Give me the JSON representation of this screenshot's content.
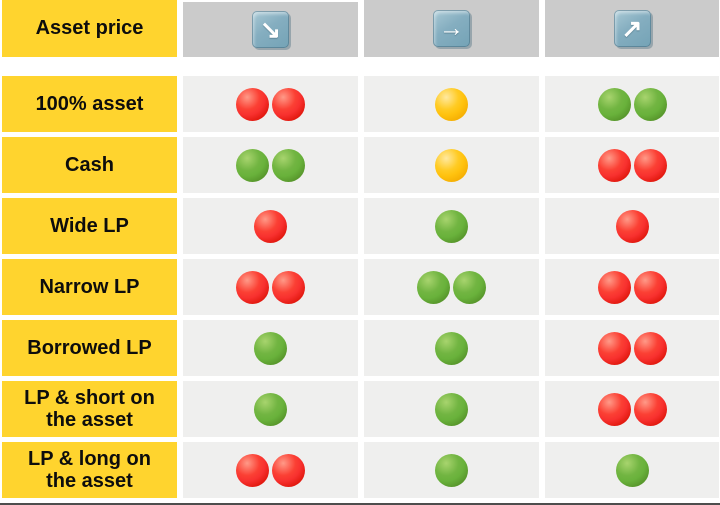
{
  "chart_data": {
    "type": "table",
    "title": "Asset price",
    "columns": [
      {
        "icon": "down-right-arrow-icon",
        "glyph": "↘"
      },
      {
        "icon": "right-arrow-icon",
        "glyph": "→"
      },
      {
        "icon": "up-right-arrow-icon",
        "glyph": "↗"
      }
    ],
    "rows": [
      {
        "label": "100% asset",
        "cells": [
          [
            "red",
            "red"
          ],
          [
            "yellow"
          ],
          [
            "green",
            "green"
          ]
        ]
      },
      {
        "label": "Cash",
        "cells": [
          [
            "green",
            "green"
          ],
          [
            "yellow"
          ],
          [
            "red",
            "red"
          ]
        ]
      },
      {
        "label": "Wide LP",
        "cells": [
          [
            "red"
          ],
          [
            "green"
          ],
          [
            "red"
          ]
        ]
      },
      {
        "label": "Narrow LP",
        "cells": [
          [
            "red",
            "red"
          ],
          [
            "green",
            "green"
          ],
          [
            "red",
            "red"
          ]
        ]
      },
      {
        "label": "Borrowed LP",
        "cells": [
          [
            "green"
          ],
          [
            "green"
          ],
          [
            "red",
            "red"
          ]
        ]
      },
      {
        "label": "LP & short on\nthe asset",
        "cells": [
          [
            "green"
          ],
          [
            "green"
          ],
          [
            "red",
            "red"
          ]
        ]
      },
      {
        "label": "LP & long on\nthe asset",
        "cells": [
          [
            "red",
            "red"
          ],
          [
            "green"
          ],
          [
            "green"
          ]
        ]
      }
    ]
  },
  "colors": {
    "label_bg": "#FFD42E",
    "header_cell_bg": "#CBCBCB",
    "data_cell_bg": "#EFEFEE",
    "arrow_button_blue": "#7FA9BC",
    "dot_red": "#F8312F",
    "dot_green": "#69B23B",
    "dot_yellow": "#FFC20E"
  }
}
